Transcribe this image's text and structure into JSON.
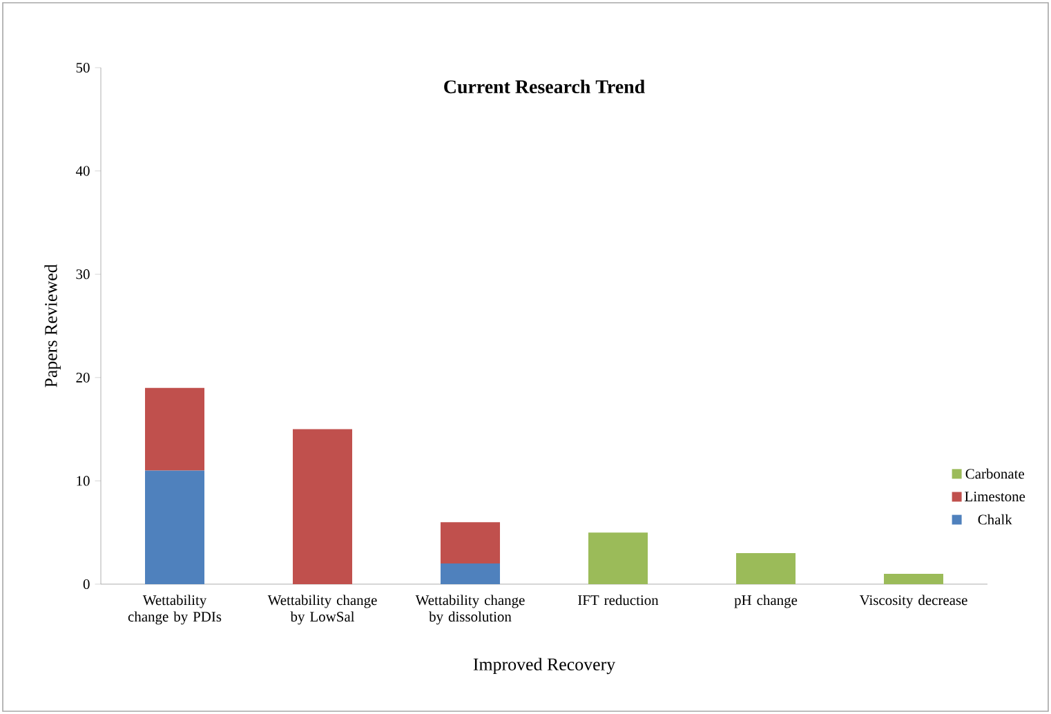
{
  "chart_data": {
    "type": "bar",
    "title": "Current Research Trend",
    "xlabel": "Improved Recovery",
    "ylabel": "Papers Reviewed",
    "categories": [
      "Wettability change by PDIs",
      "Wettability change by LowSal",
      "Wettability change by dissolution",
      "IFT reduction",
      "pH change",
      "Viscosity decrease"
    ],
    "stacked": true,
    "series": [
      {
        "name": "Chalk",
        "color": "#4f81bd",
        "values": [
          11,
          0,
          2,
          0,
          0,
          0
        ]
      },
      {
        "name": "Limestone",
        "color": "#c0504d",
        "values": [
          8,
          15,
          4,
          0,
          0,
          0
        ]
      },
      {
        "name": "Carbonate",
        "color": "#9bbb59",
        "values": [
          0,
          0,
          0,
          5,
          3,
          1
        ]
      }
    ],
    "ylim": [
      0,
      50
    ],
    "yticks": [
      0,
      10,
      20,
      30,
      40,
      50
    ],
    "legend": "right"
  }
}
